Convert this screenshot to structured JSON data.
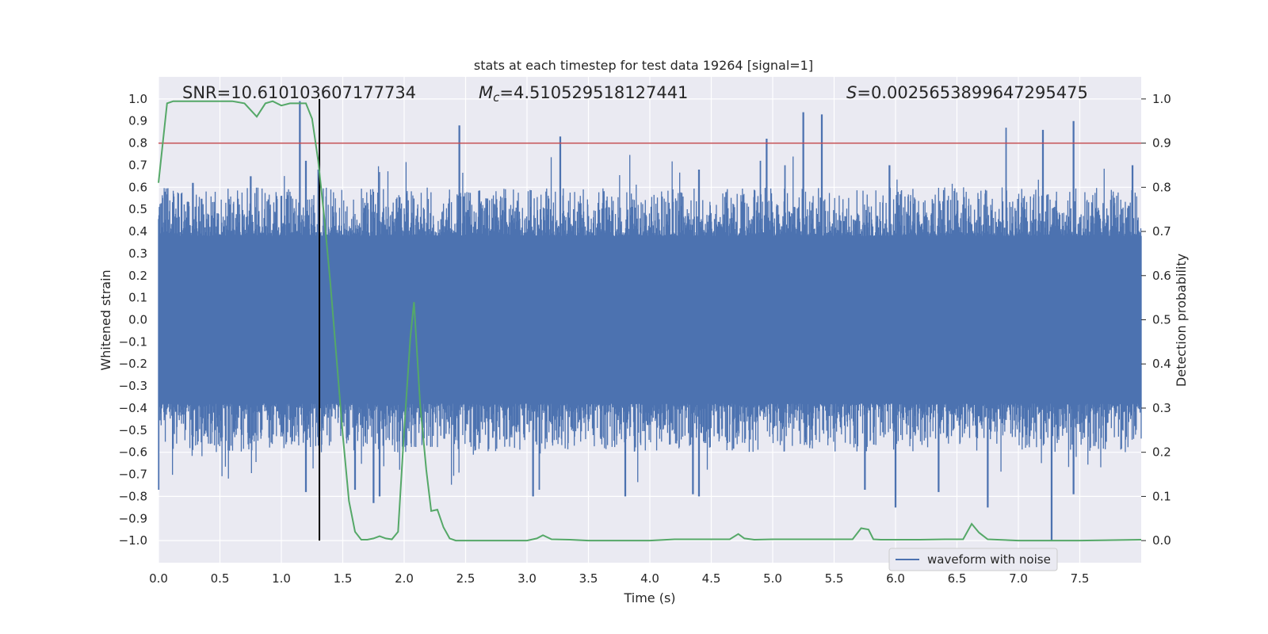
{
  "chart_data": {
    "type": "line",
    "title": "stats at each timestep for test data 19264 [signal=1]",
    "xlabel": "Time (s)",
    "ylabel_left": "Whitened strain",
    "ylabel_right": "Detection probability",
    "xlim": [
      0.0,
      8.0
    ],
    "ylim_left": [
      -1.1,
      1.1
    ],
    "ylim_right": [
      -0.05,
      1.05
    ],
    "x_ticks": [
      "0.0",
      "0.5",
      "1.0",
      "1.5",
      "2.0",
      "2.5",
      "3.0",
      "3.5",
      "4.0",
      "4.5",
      "5.0",
      "5.5",
      "6.0",
      "6.5",
      "7.0",
      "7.5"
    ],
    "y_ticks_left": [
      "1.0",
      "0.9",
      "0.8",
      "0.7",
      "0.6",
      "0.5",
      "0.4",
      "0.3",
      "0.2",
      "0.1",
      "0.0",
      "−0.1",
      "−0.2",
      "−0.3",
      "−0.4",
      "−0.5",
      "−0.6",
      "−0.7",
      "−0.8",
      "−0.9",
      "−1.0"
    ],
    "y_ticks_right": [
      "1.0",
      "0.9",
      "0.8",
      "0.7",
      "0.6",
      "0.5",
      "0.4",
      "0.3",
      "0.2",
      "0.1",
      "0.0"
    ],
    "annotations": {
      "snr": "SNR=10.610103607177734",
      "mc_symbol": "M",
      "mc_sub": "c",
      "mc_value": "=4.510529518127441",
      "s_symbol": "S",
      "s_value": "=0.0025653899647295475"
    },
    "threshold": {
      "value": 0.8,
      "axis": "left",
      "color": "#c44e52"
    },
    "vline": {
      "x": 1.31,
      "color": "#000000"
    },
    "waveform": {
      "name": "waveform with noise",
      "color": "#4c72b0",
      "typical_amplitude": 0.45,
      "peaks_up": [
        [
          0.05,
          0.58
        ],
        [
          0.28,
          0.62
        ],
        [
          0.75,
          0.65
        ],
        [
          1.15,
          0.99
        ],
        [
          1.2,
          0.72
        ],
        [
          1.3,
          0.68
        ],
        [
          2.45,
          0.88
        ],
        [
          3.27,
          0.83
        ],
        [
          4.4,
          0.68
        ],
        [
          4.9,
          0.72
        ],
        [
          4.95,
          0.82
        ],
        [
          5.1,
          0.7
        ],
        [
          5.25,
          0.94
        ],
        [
          5.4,
          0.93
        ],
        [
          5.95,
          0.7
        ],
        [
          6.9,
          0.87
        ],
        [
          7.2,
          0.86
        ],
        [
          7.45,
          0.9
        ],
        [
          7.93,
          0.7
        ]
      ],
      "peaks_down": [
        [
          0.0,
          -0.77
        ],
        [
          1.2,
          -0.78
        ],
        [
          1.6,
          -0.77
        ],
        [
          1.75,
          -0.83
        ],
        [
          1.8,
          -0.8
        ],
        [
          3.05,
          -0.8
        ],
        [
          3.1,
          -0.77
        ],
        [
          3.8,
          -0.8
        ],
        [
          4.35,
          -0.79
        ],
        [
          4.4,
          -0.8
        ],
        [
          5.75,
          -0.77
        ],
        [
          6.0,
          -0.85
        ],
        [
          6.35,
          -0.78
        ],
        [
          6.75,
          -0.85
        ],
        [
          7.27,
          -1.0
        ],
        [
          7.45,
          -0.79
        ]
      ]
    },
    "detection_probability": {
      "color": "#55a868",
      "x": [
        0.0,
        0.07,
        0.12,
        0.2,
        0.3,
        0.4,
        0.5,
        0.6,
        0.7,
        0.8,
        0.87,
        0.93,
        1.0,
        1.07,
        1.13,
        1.2,
        1.25,
        1.3,
        1.35,
        1.4,
        1.45,
        1.5,
        1.55,
        1.6,
        1.65,
        1.7,
        1.75,
        1.8,
        1.85,
        1.9,
        1.95,
        2.0,
        2.05,
        2.08,
        2.13,
        2.18,
        2.22,
        2.27,
        2.32,
        2.37,
        2.42,
        2.48,
        2.6,
        2.8,
        3.0,
        3.08,
        3.13,
        3.2,
        3.35,
        3.5,
        4.0,
        4.2,
        4.5,
        4.65,
        4.72,
        4.77,
        4.85,
        5.0,
        5.2,
        5.5,
        5.65,
        5.72,
        5.78,
        5.82,
        5.88,
        6.0,
        6.2,
        6.4,
        6.55,
        6.62,
        6.68,
        6.75,
        7.0,
        7.5,
        8.0
      ],
      "y": [
        0.81,
        0.99,
        0.995,
        0.995,
        0.995,
        0.995,
        0.995,
        0.995,
        0.99,
        0.96,
        0.99,
        0.995,
        0.985,
        0.99,
        0.99,
        0.99,
        0.955,
        0.86,
        0.73,
        0.58,
        0.41,
        0.24,
        0.09,
        0.02,
        0.002,
        0.002,
        0.005,
        0.01,
        0.005,
        0.003,
        0.02,
        0.25,
        0.46,
        0.54,
        0.31,
        0.16,
        0.067,
        0.07,
        0.03,
        0.005,
        0.0,
        0.0,
        0.0,
        0.0,
        0.0,
        0.005,
        0.012,
        0.003,
        0.002,
        0.0,
        0.0,
        0.003,
        0.003,
        0.003,
        0.015,
        0.005,
        0.002,
        0.003,
        0.003,
        0.003,
        0.003,
        0.028,
        0.025,
        0.003,
        0.002,
        0.002,
        0.002,
        0.003,
        0.003,
        0.038,
        0.018,
        0.003,
        0.0,
        0.0,
        0.002
      ]
    },
    "legend": {
      "entries": [
        "waveform with noise"
      ],
      "position": "lower-right"
    }
  }
}
